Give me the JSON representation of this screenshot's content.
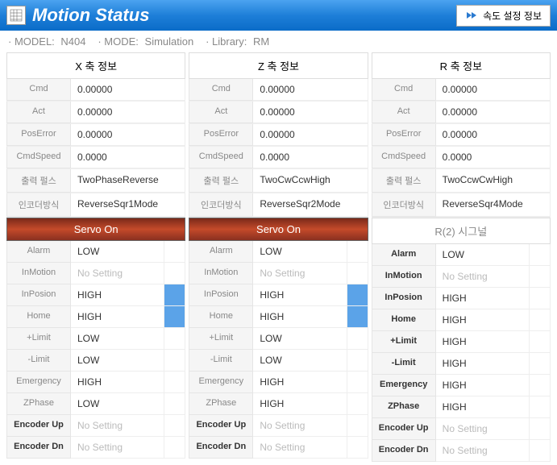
{
  "header": {
    "title": "Motion Status",
    "speed_button": "속도 설정 정보"
  },
  "subheader": {
    "model_label": "· MODEL:",
    "model_value": "N404",
    "mode_label": "· MODE:",
    "mode_value": "Simulation",
    "library_label": "· Library:",
    "library_value": "RM"
  },
  "axes": [
    {
      "title": "X 축 정보",
      "info": [
        {
          "label": "Cmd",
          "value": "0.00000"
        },
        {
          "label": "Act",
          "value": "0.00000"
        },
        {
          "label": "PosError",
          "value": "0.00000"
        },
        {
          "label": "CmdSpeed",
          "value": "0.0000"
        },
        {
          "label": "출력 펄스",
          "value": "TwoPhaseReverse"
        },
        {
          "label": "인코더방식",
          "value": "ReverseSqr1Mode"
        }
      ],
      "signal_title": "Servo On",
      "servo_on": true,
      "signals": [
        {
          "label": "Alarm",
          "value": "LOW",
          "ind": false,
          "bold": false
        },
        {
          "label": "InMotion",
          "value": "No Setting",
          "ind": false,
          "bold": false,
          "nosetting": true
        },
        {
          "label": "InPosion",
          "value": "HIGH",
          "ind": true,
          "bold": false
        },
        {
          "label": "Home",
          "value": "HIGH",
          "ind": true,
          "bold": false
        },
        {
          "label": "+Limit",
          "value": "LOW",
          "ind": false,
          "bold": false
        },
        {
          "label": "-Limit",
          "value": "LOW",
          "ind": false,
          "bold": false
        },
        {
          "label": "Emergency",
          "value": "HIGH",
          "ind": false,
          "bold": false
        },
        {
          "label": "ZPhase",
          "value": "LOW",
          "ind": false,
          "bold": false
        },
        {
          "label": "Encoder Up",
          "value": "No Setting",
          "ind": false,
          "bold": true,
          "nosetting": true
        },
        {
          "label": "Encoder Dn",
          "value": "No Setting",
          "ind": false,
          "bold": true,
          "nosetting": true
        }
      ]
    },
    {
      "title": "Z 축 정보",
      "info": [
        {
          "label": "Cmd",
          "value": "0.00000"
        },
        {
          "label": "Act",
          "value": "0.00000"
        },
        {
          "label": "PosError",
          "value": "0.00000"
        },
        {
          "label": "CmdSpeed",
          "value": "0.0000"
        },
        {
          "label": "출력 펄스",
          "value": "TwoCwCcwHigh"
        },
        {
          "label": "인코더방식",
          "value": "ReverseSqr2Mode"
        }
      ],
      "signal_title": "Servo On",
      "servo_on": true,
      "signals": [
        {
          "label": "Alarm",
          "value": "LOW",
          "ind": false,
          "bold": false
        },
        {
          "label": "InMotion",
          "value": "No Setting",
          "ind": false,
          "bold": false,
          "nosetting": true
        },
        {
          "label": "InPosion",
          "value": "HIGH",
          "ind": true,
          "bold": false
        },
        {
          "label": "Home",
          "value": "HIGH",
          "ind": true,
          "bold": false
        },
        {
          "label": "+Limit",
          "value": "LOW",
          "ind": false,
          "bold": false
        },
        {
          "label": "-Limit",
          "value": "LOW",
          "ind": false,
          "bold": false
        },
        {
          "label": "Emergency",
          "value": "HIGH",
          "ind": false,
          "bold": false
        },
        {
          "label": "ZPhase",
          "value": "HIGH",
          "ind": false,
          "bold": false
        },
        {
          "label": "Encoder Up",
          "value": "No Setting",
          "ind": false,
          "bold": true,
          "nosetting": true
        },
        {
          "label": "Encoder Dn",
          "value": "No Setting",
          "ind": false,
          "bold": true,
          "nosetting": true
        }
      ]
    },
    {
      "title": "R 축 정보",
      "info": [
        {
          "label": "Cmd",
          "value": "0.00000"
        },
        {
          "label": "Act",
          "value": "0.00000"
        },
        {
          "label": "PosError",
          "value": "0.00000"
        },
        {
          "label": "CmdSpeed",
          "value": "0.0000"
        },
        {
          "label": "출력 펄스",
          "value": "TwoCcwCwHigh"
        },
        {
          "label": "인코더방식",
          "value": "ReverseSqr4Mode"
        }
      ],
      "signal_title": "R(2) 시그널",
      "servo_on": false,
      "signals": [
        {
          "label": "Alarm",
          "value": "LOW",
          "ind": false,
          "bold": true
        },
        {
          "label": "InMotion",
          "value": "No Setting",
          "ind": false,
          "bold": true,
          "nosetting": true
        },
        {
          "label": "InPosion",
          "value": "HIGH",
          "ind": false,
          "bold": true
        },
        {
          "label": "Home",
          "value": "HIGH",
          "ind": false,
          "bold": true
        },
        {
          "label": "+Limit",
          "value": "HIGH",
          "ind": false,
          "bold": true
        },
        {
          "label": "-Limit",
          "value": "HIGH",
          "ind": false,
          "bold": true
        },
        {
          "label": "Emergency",
          "value": "HIGH",
          "ind": false,
          "bold": true
        },
        {
          "label": "ZPhase",
          "value": "HIGH",
          "ind": false,
          "bold": true
        },
        {
          "label": "Encoder Up",
          "value": "No Setting",
          "ind": false,
          "bold": true,
          "nosetting": true
        },
        {
          "label": "Encoder Dn",
          "value": "No Setting",
          "ind": false,
          "bold": true,
          "nosetting": true
        }
      ]
    }
  ],
  "colors": {
    "header_grad_top": "#4ba3f0",
    "header_grad_bot": "#0a6cc8",
    "servo_grad_top": "#7a2a1a",
    "servo_grad_mid": "#c44a2a",
    "indicator_on": "#5ba3e8"
  }
}
